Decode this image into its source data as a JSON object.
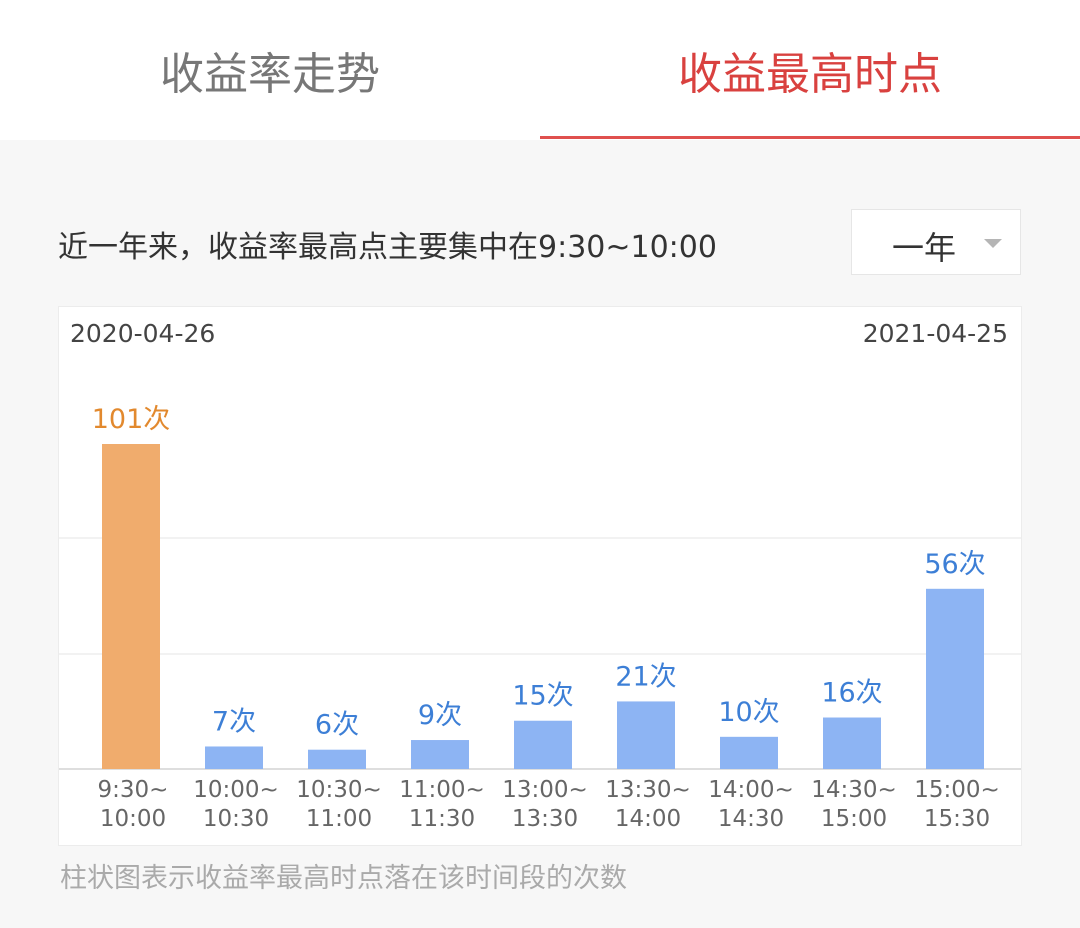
{
  "tabs": [
    {
      "label": "收益率走势",
      "active": false
    },
    {
      "label": "收益最高时点",
      "active": true
    }
  ],
  "summary": "近一年来，收益率最高点主要集中在9:30~10:00",
  "range_select": {
    "value": "一年"
  },
  "date_range": {
    "start": "2020-04-26",
    "end": "2021-04-25"
  },
  "footnote": "柱状图表示收益率最高时点落在该时间段的次数",
  "colors": {
    "highlight": "#f0ac6d",
    "highlight_text": "#e2892e",
    "bar": "#8db4f3",
    "bar_text": "#3d7fd6",
    "accent": "#e0504e"
  },
  "chart_data": {
    "type": "bar",
    "categories": [
      [
        "9:30~",
        "10:00"
      ],
      [
        "10:00~",
        "10:30"
      ],
      [
        "10:30~",
        "11:00"
      ],
      [
        "11:00~",
        "11:30"
      ],
      [
        "13:00~",
        "13:30"
      ],
      [
        "13:30~",
        "14:00"
      ],
      [
        "14:00~",
        "14:30"
      ],
      [
        "14:30~",
        "15:00"
      ],
      [
        "15:00~",
        "15:30"
      ]
    ],
    "values": [
      101,
      7,
      6,
      9,
      15,
      21,
      10,
      16,
      56
    ],
    "labels": [
      "101次",
      "7次",
      "6次",
      "9次",
      "15次",
      "21次",
      "10次",
      "16次",
      "56次"
    ],
    "highlight_index": 0,
    "title": "",
    "xlabel": "",
    "ylabel": "",
    "ylim": [
      0,
      101
    ],
    "grid": true
  }
}
